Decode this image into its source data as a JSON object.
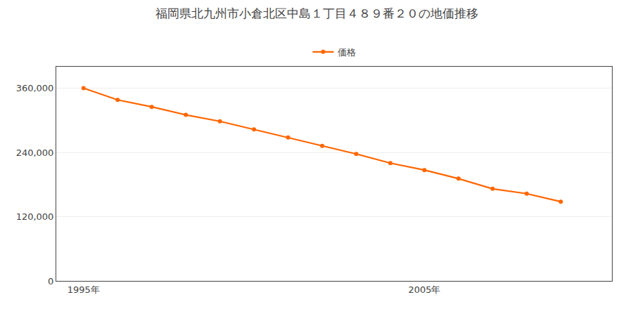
{
  "chart_data": {
    "type": "line",
    "title": "福岡県北九州市小倉北区中島１丁目４８９番２０の地価推移",
    "x": [
      1995,
      1996,
      1997,
      1998,
      1999,
      2000,
      2001,
      2002,
      2003,
      2004,
      2005,
      2006,
      2007,
      2008,
      2009
    ],
    "series": [
      {
        "name": "価格",
        "color": "#FF6600",
        "marker": "circle",
        "line_style": "solid",
        "values": [
          360000,
          338000,
          325000,
          310000,
          298000,
          283000,
          268000,
          252000,
          237000,
          220000,
          207000,
          191000,
          172000,
          163000,
          148000
        ]
      }
    ],
    "xlim": [
      1994.2,
      2010.5
    ],
    "xticks": [
      {
        "value": 1995,
        "label": "1995年"
      },
      {
        "value": 2005,
        "label": "2005年"
      }
    ],
    "ylim": [
      0,
      400000
    ],
    "yticks": [
      0,
      {
        "value": 120000,
        "label": "120,000"
      },
      {
        "value": 240000,
        "label": "240,000"
      },
      {
        "value": 360000,
        "label": "360,000"
      }
    ],
    "grid": true,
    "legend": "top"
  }
}
